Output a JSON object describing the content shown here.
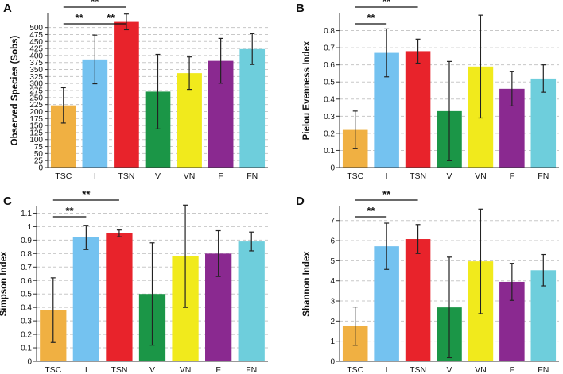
{
  "chart_data": [
    {
      "panel": "A",
      "type": "bar",
      "ylabel": "Observed Species (Sobs)",
      "categories": [
        "TSC",
        "I",
        "TSN",
        "V",
        "VN",
        "F",
        "FN"
      ],
      "colors": [
        "#f0b042",
        "#74c2f0",
        "#e8232b",
        "#1b9647",
        "#f1ea1c",
        "#8a2990",
        "#6ecedc"
      ],
      "values": [
        222,
        386,
        520,
        271,
        337,
        381,
        423
      ],
      "errors": [
        63,
        87,
        28,
        133,
        58,
        80,
        55
      ],
      "ylim": [
        0,
        550
      ],
      "yticks": [
        0,
        25,
        50,
        75,
        100,
        125,
        150,
        175,
        200,
        225,
        250,
        275,
        300,
        325,
        350,
        375,
        400,
        425,
        450,
        475,
        500
      ],
      "grid": true,
      "significance": [
        {
          "from": 0,
          "to": 2,
          "label": "**"
        },
        {
          "from": 0,
          "to": 1,
          "label": "**"
        },
        {
          "from": 1,
          "to": 2,
          "label": "**"
        }
      ]
    },
    {
      "panel": "B",
      "type": "bar",
      "ylabel": "Pielou Evenness Index",
      "categories": [
        "TSC",
        "I",
        "TSN",
        "V",
        "VN",
        "F",
        "FN"
      ],
      "colors": [
        "#f0b042",
        "#74c2f0",
        "#e8232b",
        "#1b9647",
        "#f1ea1c",
        "#8a2990",
        "#6ecedc"
      ],
      "values": [
        0.22,
        0.67,
        0.68,
        0.33,
        0.59,
        0.46,
        0.52
      ],
      "errors": [
        0.11,
        0.14,
        0.07,
        0.29,
        0.3,
        0.1,
        0.08
      ],
      "ylim": [
        0,
        0.9
      ],
      "yticks": [
        0,
        0.1,
        0.2,
        0.3,
        0.4,
        0.5,
        0.6,
        0.7,
        0.8
      ],
      "grid": true,
      "significance": [
        {
          "from": 0,
          "to": 2,
          "label": "**"
        },
        {
          "from": 0,
          "to": 1,
          "label": "**"
        }
      ]
    },
    {
      "panel": "C",
      "type": "bar",
      "ylabel": "Simpson Index",
      "categories": [
        "TSC",
        "I",
        "TSN",
        "V",
        "VN",
        "F",
        "FN"
      ],
      "colors": [
        "#f0b042",
        "#74c2f0",
        "#e8232b",
        "#1b9647",
        "#f1ea1c",
        "#8a2990",
        "#6ecedc"
      ],
      "values": [
        0.38,
        0.92,
        0.95,
        0.5,
        0.78,
        0.8,
        0.89
      ],
      "errors": [
        0.24,
        0.09,
        0.025,
        0.38,
        0.38,
        0.17,
        0.07
      ],
      "ylim": [
        0,
        1.15
      ],
      "yticks": [
        0,
        0.1,
        0.2,
        0.3,
        0.4,
        0.5,
        0.6,
        0.7,
        0.8,
        0.9,
        1,
        1.1
      ],
      "grid": true,
      "significance": [
        {
          "from": 0,
          "to": 2,
          "label": "**"
        },
        {
          "from": 0,
          "to": 1,
          "label": "**"
        }
      ]
    },
    {
      "panel": "D",
      "type": "bar",
      "ylabel": "Shannon Index",
      "categories": [
        "TSC",
        "I",
        "TSN",
        "V",
        "VN",
        "F",
        "FN"
      ],
      "colors": [
        "#f0b042",
        "#74c2f0",
        "#e8232b",
        "#1b9647",
        "#f1ea1c",
        "#8a2990",
        "#6ecedc"
      ],
      "values": [
        1.75,
        5.72,
        6.08,
        2.68,
        4.97,
        3.95,
        4.53
      ],
      "errors": [
        0.95,
        1.15,
        0.72,
        2.5,
        2.6,
        0.92,
        0.78
      ],
      "ylim": [
        0,
        7.7
      ],
      "yticks": [
        0,
        1,
        2,
        3,
        4,
        5,
        6,
        7
      ],
      "grid": true,
      "significance": [
        {
          "from": 0,
          "to": 2,
          "label": "**"
        },
        {
          "from": 0,
          "to": 1,
          "label": "**"
        }
      ]
    }
  ]
}
